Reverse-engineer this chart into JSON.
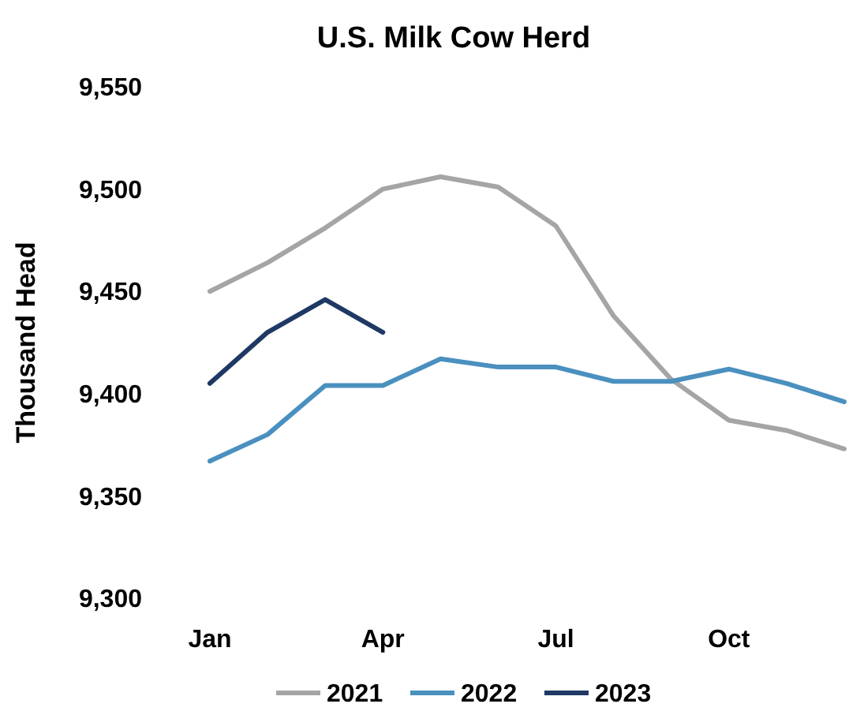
{
  "chart_data": {
    "type": "line",
    "title": "U.S. Milk Cow Herd",
    "ylabel": "Thousand Head",
    "categories": [
      "Jan",
      null,
      null,
      "Apr",
      null,
      null,
      "Jul",
      null,
      null,
      "Oct",
      null,
      null
    ],
    "ylim": [
      9300,
      9550
    ],
    "yticks": [
      {
        "value": 9300,
        "label": "9,300"
      },
      {
        "value": 9350,
        "label": "9,350"
      },
      {
        "value": 9400,
        "label": "9,400"
      },
      {
        "value": 9450,
        "label": "9,450"
      },
      {
        "value": 9500,
        "label": "9,500"
      },
      {
        "value": 9550,
        "label": "9,550"
      }
    ],
    "legend": "bottom",
    "grid": false,
    "series": [
      {
        "name": "2021",
        "color": "#a5a5a5",
        "values": [
          9450,
          9464,
          9481,
          9500,
          9506,
          9501,
          9482,
          9438,
          9407,
          9387,
          9382,
          9373
        ]
      },
      {
        "name": "2022",
        "color": "#4a90bf",
        "values": [
          9367,
          9380,
          9404,
          9404,
          9417,
          9413,
          9413,
          9406,
          9406,
          9412,
          9405,
          9396
        ]
      },
      {
        "name": "2023",
        "color": "#1f3864",
        "values": [
          9405,
          9430,
          9446,
          9430,
          null,
          null,
          null,
          null,
          null,
          null,
          null,
          null
        ]
      }
    ]
  }
}
